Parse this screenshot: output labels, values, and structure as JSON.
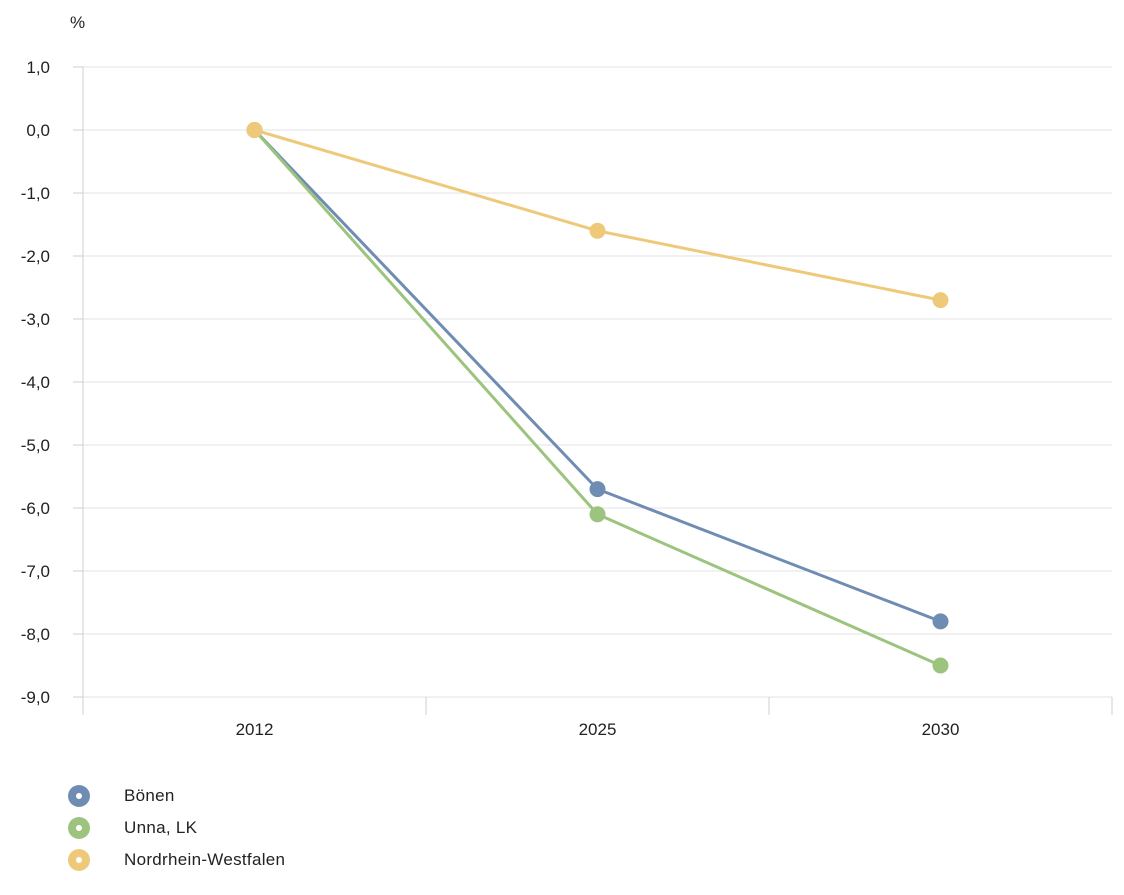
{
  "chart_data": {
    "type": "line",
    "unit_label": "%",
    "categories": [
      "2012",
      "2025",
      "2030"
    ],
    "y_ticks": [
      "1,0",
      "0,0",
      "-1,0",
      "-2,0",
      "-3,0",
      "-4,0",
      "-5,0",
      "-6,0",
      "-7,0",
      "-8,0",
      "-9,0"
    ],
    "ylim": [
      -9,
      1
    ],
    "grid": true,
    "legend_position": "bottom-left",
    "series": [
      {
        "name": "Bönen",
        "color": "#6f8db3",
        "values": [
          0.0,
          -5.7,
          -7.8
        ]
      },
      {
        "name": "Unna, LK",
        "color": "#9cc47e",
        "values": [
          0.0,
          -6.1,
          -8.5
        ]
      },
      {
        "name": "Nordrhein-Westfalen",
        "color": "#efc97a",
        "values": [
          0.0,
          -1.6,
          -2.7
        ]
      }
    ]
  }
}
